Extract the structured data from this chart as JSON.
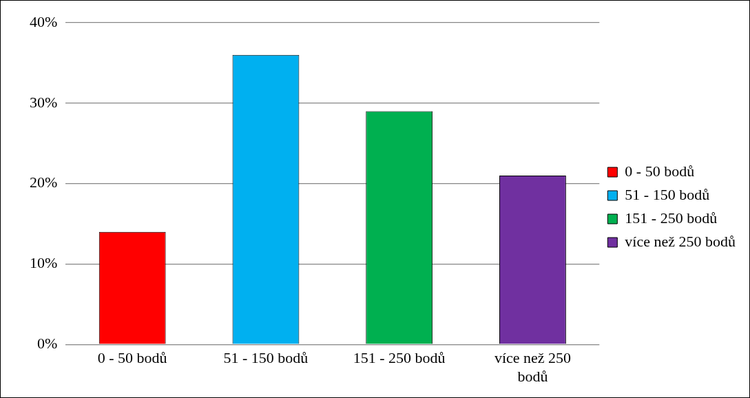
{
  "chart_data": {
    "type": "bar",
    "categories": [
      "0 - 50 bodů",
      "51 - 150 bodů",
      "151 - 250 bodů",
      "více než 250 bodů"
    ],
    "series": [
      {
        "name": "0 - 50 bodů",
        "color": "#ff0000",
        "values": [
          14,
          null,
          null,
          null
        ]
      },
      {
        "name": "51 - 150 bodů",
        "color": "#00b0f0",
        "values": [
          null,
          36,
          null,
          null
        ]
      },
      {
        "name": "151 - 250 bodů",
        "color": "#00b050",
        "values": [
          null,
          null,
          29,
          null
        ]
      },
      {
        "name": "více než 250 bodů",
        "color": "#7030a0",
        "values": [
          null,
          null,
          null,
          21
        ]
      }
    ],
    "ylim": [
      0,
      40
    ],
    "yticks": [
      {
        "value": 0,
        "label": "0%"
      },
      {
        "value": 10,
        "label": "10%"
      },
      {
        "value": 20,
        "label": "20%"
      },
      {
        "value": 30,
        "label": "30%"
      },
      {
        "value": 40,
        "label": "40%"
      }
    ],
    "grid": "y",
    "legend": "right"
  }
}
